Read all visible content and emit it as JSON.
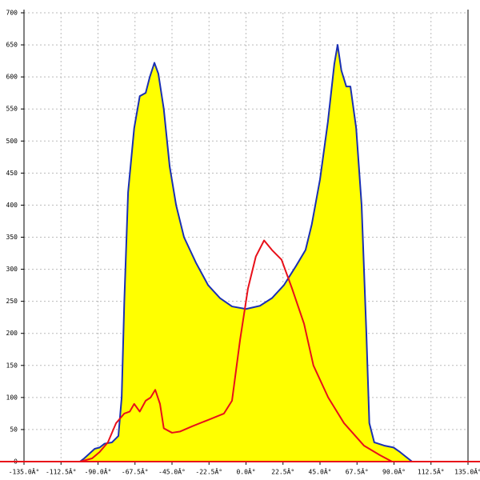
{
  "chart_data": {
    "type": "line",
    "xlim": [
      -135,
      135
    ],
    "ylim": [
      0,
      700
    ],
    "xticks": [
      {
        "value": -135,
        "label": "-135.0Â°"
      },
      {
        "value": -112.5,
        "label": "-112.5Â°"
      },
      {
        "value": -90,
        "label": "-90.0Â°"
      },
      {
        "value": -67.5,
        "label": "-67.5Â°"
      },
      {
        "value": -45,
        "label": "-45.0Â°"
      },
      {
        "value": -22.5,
        "label": "-22.5Â°"
      },
      {
        "value": 0,
        "label": "0.0Â°"
      },
      {
        "value": 22.5,
        "label": "22.5Â°"
      },
      {
        "value": 45,
        "label": "45.0Â°"
      },
      {
        "value": 67.5,
        "label": "67.5Â°"
      },
      {
        "value": 90,
        "label": "90.0Â°"
      },
      {
        "value": 112.5,
        "label": "112.5Â°"
      },
      {
        "value": 135,
        "label": "135.0Â°"
      }
    ],
    "yticks": [
      0,
      50,
      100,
      150,
      200,
      250,
      300,
      350,
      400,
      450,
      500,
      550,
      600,
      650,
      700
    ],
    "grid": true,
    "series": [
      {
        "color": "#1a2fb4",
        "fill": "#ffff00",
        "x": [
          -101,
          -98.4,
          -92,
          -89,
          -86,
          -81.5,
          -77.6,
          -75.6,
          -74,
          -71.7,
          -68,
          -64.6,
          -61,
          -58.5,
          -55.7,
          -53.3,
          -50,
          -46.4,
          -42.5,
          -37.7,
          -30.4,
          -23,
          -15.8,
          -8.5,
          0,
          8.5,
          15.8,
          23,
          30.4,
          36.2,
          40,
          45,
          49.8,
          53.7,
          55.7,
          58,
          61,
          63.5,
          67,
          70.3,
          73.2,
          75,
          78,
          84,
          89.7,
          93.6,
          98.5,
          101
        ],
        "values": [
          0,
          5,
          20,
          22,
          28,
          30,
          40,
          100,
          250,
          420,
          520,
          570,
          575,
          600,
          622,
          605,
          550,
          460,
          400,
          350,
          310,
          275,
          255,
          242,
          238,
          243,
          255,
          275,
          305,
          330,
          370,
          440,
          530,
          620,
          650,
          610,
          585,
          585,
          520,
          400,
          200,
          60,
          30,
          25,
          22,
          15,
          5,
          0
        ]
      },
      {
        "color": "#e8101a",
        "x": [
          -101,
          -93.6,
          -89,
          -84,
          -79,
          -74,
          -70.7,
          -68,
          -64.6,
          -61,
          -58,
          -55.2,
          -52.3,
          -50,
          -45,
          -40,
          -32.8,
          -23,
          -13.4,
          -8.5,
          -3.6,
          1.2,
          6,
          11,
          15.8,
          21.6,
          28,
          35.3,
          41,
          50,
          59.6,
          71.7,
          81.5,
          88.8
        ],
        "values": [
          0,
          5,
          15,
          30,
          60,
          75,
          78,
          90,
          78,
          95,
          100,
          112,
          90,
          52,
          45,
          47,
          55,
          65,
          75,
          95,
          190,
          270,
          320,
          345,
          330,
          315,
          270,
          215,
          150,
          100,
          60,
          25,
          10,
          0
        ]
      }
    ]
  }
}
